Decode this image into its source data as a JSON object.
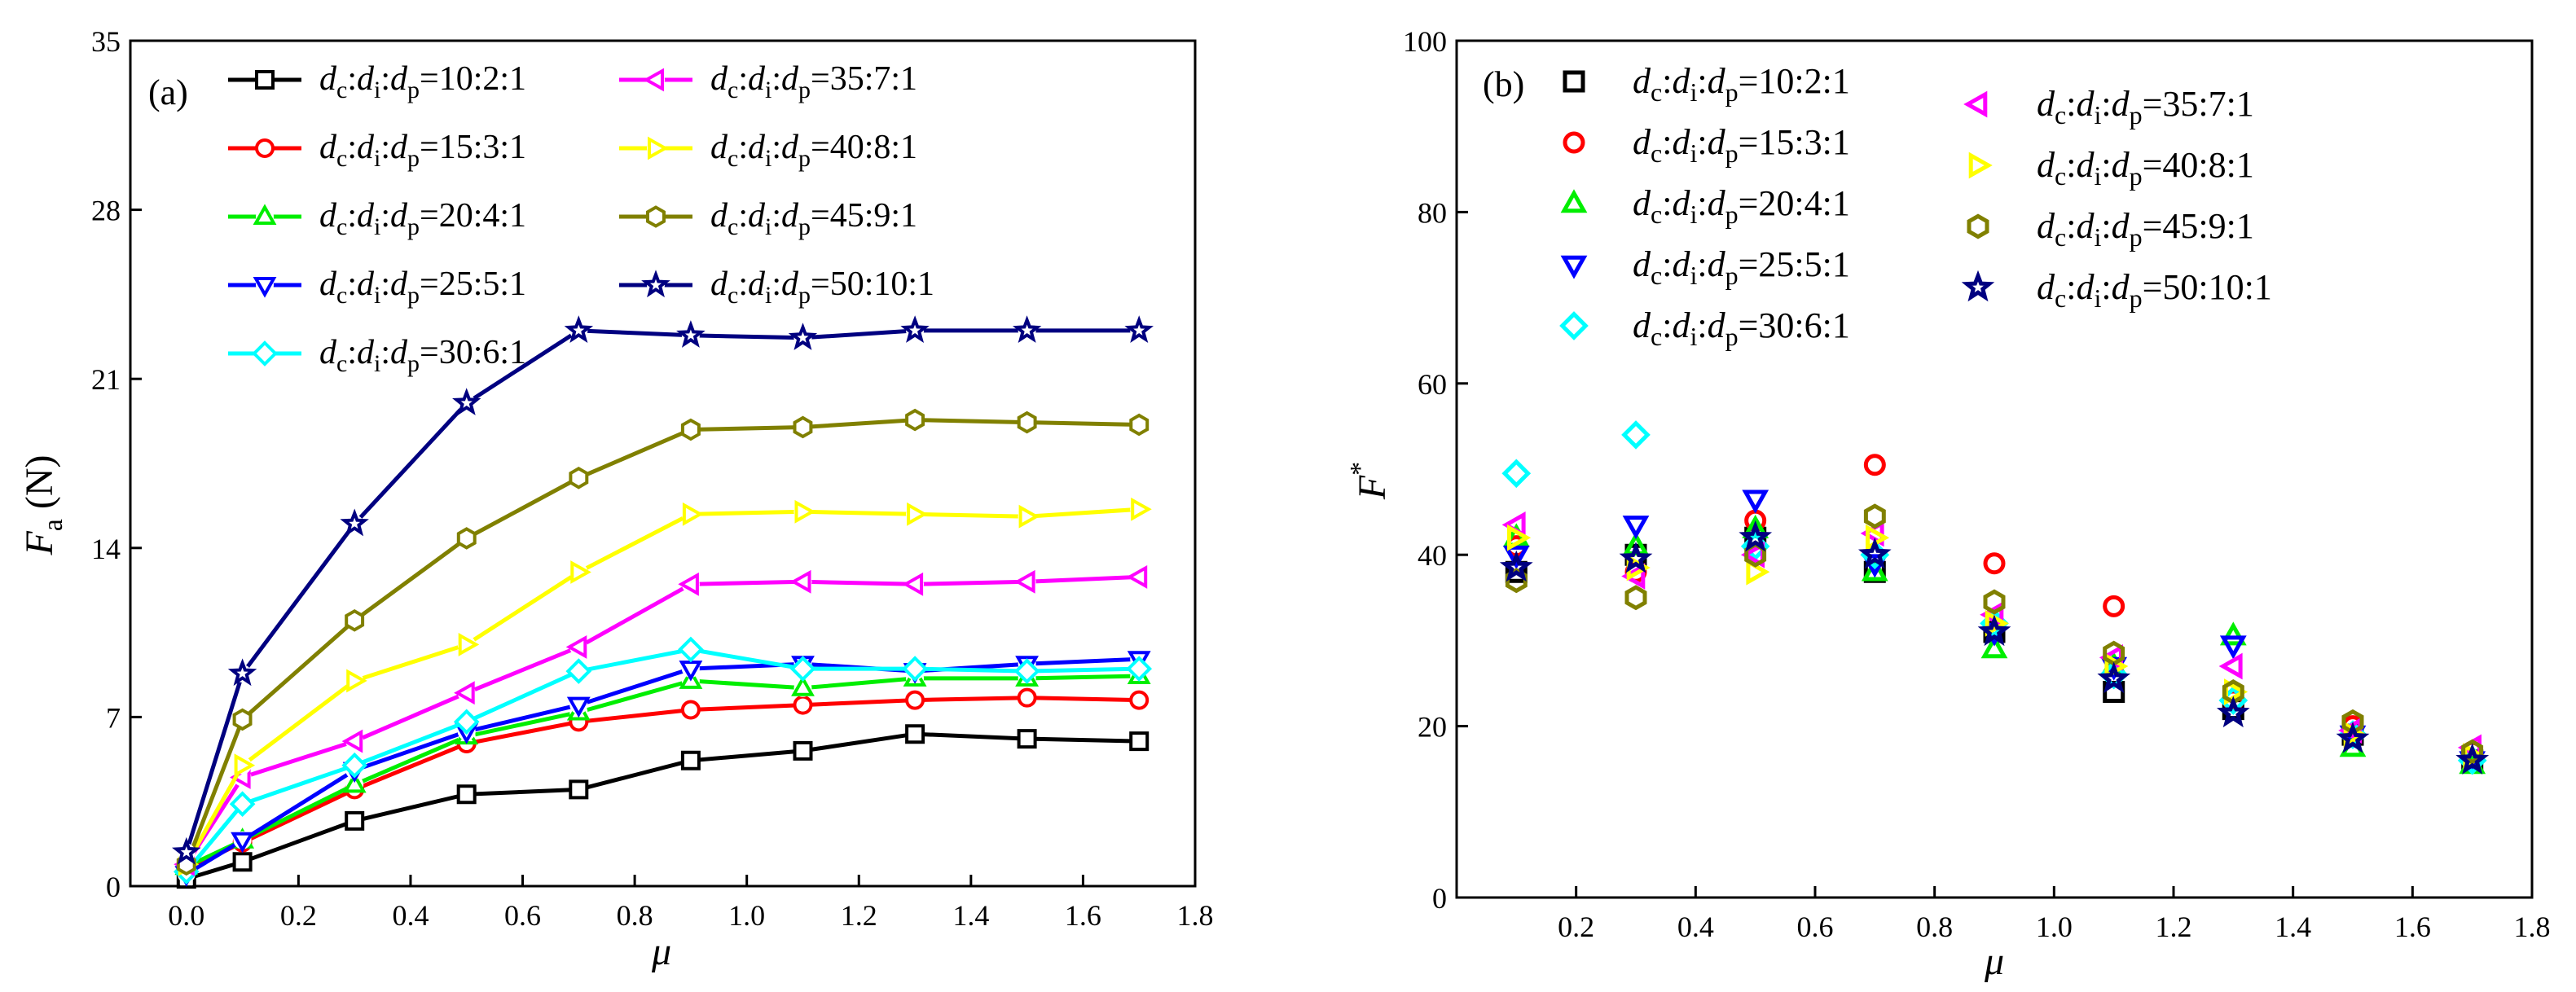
{
  "chart_data": [
    {
      "type": "line",
      "panel_label": "(a)",
      "ylabel": "F_a (N)",
      "ylabel_main": "F",
      "ylabel_sub": "a",
      "ylabel_unit": "(N)",
      "xlabel": "μ",
      "xlim": [
        -0.1,
        1.8
      ],
      "ylim": [
        0,
        35
      ],
      "xticks": [
        0.0,
        0.2,
        0.4,
        0.6,
        0.8,
        1.0,
        1.2,
        1.4,
        1.6,
        1.8
      ],
      "xtick_labels": [
        "0.0",
        "0.2",
        "0.4",
        "0.6",
        "0.8",
        "1.0",
        "1.2",
        "1.4",
        "1.6",
        "1.8"
      ],
      "yticks": [
        0,
        7,
        14,
        21,
        28,
        35
      ],
      "ytick_labels": [
        "0",
        "7",
        "14",
        "21",
        "28",
        "35"
      ],
      "x": [
        0.0,
        0.1,
        0.3,
        0.5,
        0.7,
        0.9,
        1.1,
        1.3,
        1.5,
        1.7
      ],
      "series": [
        {
          "name": "dc:di:dp=10:2:1",
          "ratio": "=10:2:1",
          "color": "#000000",
          "marker": "square",
          "values": [
            0.3,
            1.0,
            2.7,
            3.8,
            4.0,
            5.2,
            5.6,
            6.3,
            6.1,
            6.0
          ]
        },
        {
          "name": "dc:di:dp=15:3:1",
          "ratio": "=15:3:1",
          "color": "#ff0000",
          "marker": "circle",
          "values": [
            0.7,
            1.8,
            4.0,
            5.9,
            6.8,
            7.3,
            7.5,
            7.7,
            7.8,
            7.7
          ]
        },
        {
          "name": "dc:di:dp=20:4:1",
          "ratio": "=20:4:1",
          "color": "#00ee00",
          "marker": "triangle-up",
          "values": [
            0.8,
            1.9,
            4.2,
            6.2,
            7.2,
            8.5,
            8.2,
            8.6,
            8.6,
            8.7
          ]
        },
        {
          "name": "dc:di:dp=25:5:1",
          "ratio": "=25:5:1",
          "color": "#0000ff",
          "marker": "triangle-down",
          "values": [
            0.5,
            1.9,
            4.8,
            6.4,
            7.5,
            9.0,
            9.2,
            8.9,
            9.2,
            9.4
          ]
        },
        {
          "name": "dc:di:dp=30:6:1",
          "ratio": "=30:6:1",
          "color": "#00ffff",
          "marker": "diamond",
          "values": [
            0.6,
            3.4,
            5.0,
            6.8,
            8.9,
            9.8,
            9.0,
            9.0,
            8.9,
            9.0
          ]
        },
        {
          "name": "dc:di:dp=35:7:1",
          "ratio": "=35:7:1",
          "color": "#ff00ff",
          "marker": "triangle-left",
          "values": [
            0.9,
            4.5,
            6.0,
            8.0,
            9.9,
            12.5,
            12.6,
            12.5,
            12.6,
            12.8
          ]
        },
        {
          "name": "dc:di:dp=40:8:1",
          "ratio": "=40:8:1",
          "color": "#ffff00",
          "marker": "triangle-right",
          "values": [
            0.9,
            5.0,
            8.5,
            10.0,
            13.0,
            15.4,
            15.5,
            15.4,
            15.3,
            15.6
          ]
        },
        {
          "name": "dc:di:dp=45:9:1",
          "ratio": "=45:9:1",
          "color": "#808000",
          "marker": "hexagon",
          "values": [
            0.9,
            6.9,
            11.0,
            14.4,
            16.9,
            18.9,
            19.0,
            19.3,
            19.2,
            19.1
          ]
        },
        {
          "name": "dc:di:dp=50:10:1",
          "ratio": "=50:10:1",
          "color": "#000080",
          "marker": "star",
          "values": [
            1.4,
            8.8,
            15.0,
            20.0,
            23.0,
            22.8,
            22.7,
            23.0,
            23.0,
            23.0
          ]
        }
      ]
    },
    {
      "type": "scatter",
      "panel_label": "(b)",
      "ylabel": "F*",
      "ylabel_main": "F",
      "ylabel_sup": "*",
      "xlabel": "μ",
      "xlim": [
        0.0,
        1.8
      ],
      "ylim": [
        0,
        100
      ],
      "xticks": [
        0.2,
        0.4,
        0.6,
        0.8,
        1.0,
        1.2,
        1.4,
        1.6,
        1.8
      ],
      "xtick_labels": [
        "0.2",
        "0.4",
        "0.6",
        "0.8",
        "1.0",
        "1.2",
        "1.4",
        "1.6",
        "1.8"
      ],
      "yticks": [
        0,
        20,
        40,
        60,
        80,
        100
      ],
      "ytick_labels": [
        "0",
        "20",
        "40",
        "60",
        "80",
        "100"
      ],
      "x": [
        0.1,
        0.3,
        0.5,
        0.7,
        0.9,
        1.1,
        1.3,
        1.5,
        1.7
      ],
      "series": [
        {
          "name": "dc:di:dp=10:2:1",
          "ratio": "=10:2:1",
          "color": "#000000",
          "marker": "square",
          "values": [
            38,
            40,
            42,
            38,
            31,
            24,
            22,
            19,
            16
          ]
        },
        {
          "name": "dc:di:dp=15:3:1",
          "ratio": "=15:3:1",
          "color": "#ff0000",
          "marker": "circle",
          "values": [
            41,
            38,
            44,
            50.5,
            39,
            34,
            23,
            20,
            17
          ]
        },
        {
          "name": "dc:di:dp=20:4:1",
          "ratio": "=20:4:1",
          "color": "#00ee00",
          "marker": "triangle-up",
          "values": [
            42,
            41,
            43,
            38,
            29,
            27,
            30.5,
            17.5,
            15.5
          ]
        },
        {
          "name": "dc:di:dp=25:5:1",
          "ratio": "=25:5:1",
          "color": "#0000ff",
          "marker": "triangle-down",
          "values": [
            40,
            43.5,
            46.5,
            39,
            31,
            27,
            29.5,
            19,
            16
          ]
        },
        {
          "name": "dc:di:dp=30:6:1",
          "ratio": "=30:6:1",
          "color": "#00ffff",
          "marker": "diamond",
          "values": [
            49.5,
            54,
            41,
            40,
            32,
            26,
            23,
            19,
            16
          ]
        },
        {
          "name": "dc:di:dp=35:7:1",
          "ratio": "=35:7:1",
          "color": "#ff00ff",
          "marker": "triangle-left",
          "values": [
            43.5,
            37.5,
            40,
            42.5,
            33,
            28,
            27,
            19.5,
            17.5
          ]
        },
        {
          "name": "dc:di:dp=40:8:1",
          "ratio": "=40:8:1",
          "color": "#ffff00",
          "marker": "triangle-right",
          "values": [
            42,
            38.5,
            38,
            42,
            32,
            27,
            24,
            19,
            16.5
          ]
        },
        {
          "name": "dc:di:dp=45:9:1",
          "ratio": "=45:9:1",
          "color": "#808000",
          "marker": "hexagon",
          "values": [
            37,
            35,
            40,
            44.5,
            34.5,
            28.5,
            24,
            20.5,
            17
          ]
        },
        {
          "name": "dc:di:dp=50:10:1",
          "ratio": "=50:10:1",
          "color": "#000080",
          "marker": "star",
          "values": [
            38.5,
            39.5,
            42,
            40,
            31,
            25.5,
            21.5,
            18.5,
            16
          ]
        }
      ]
    }
  ]
}
